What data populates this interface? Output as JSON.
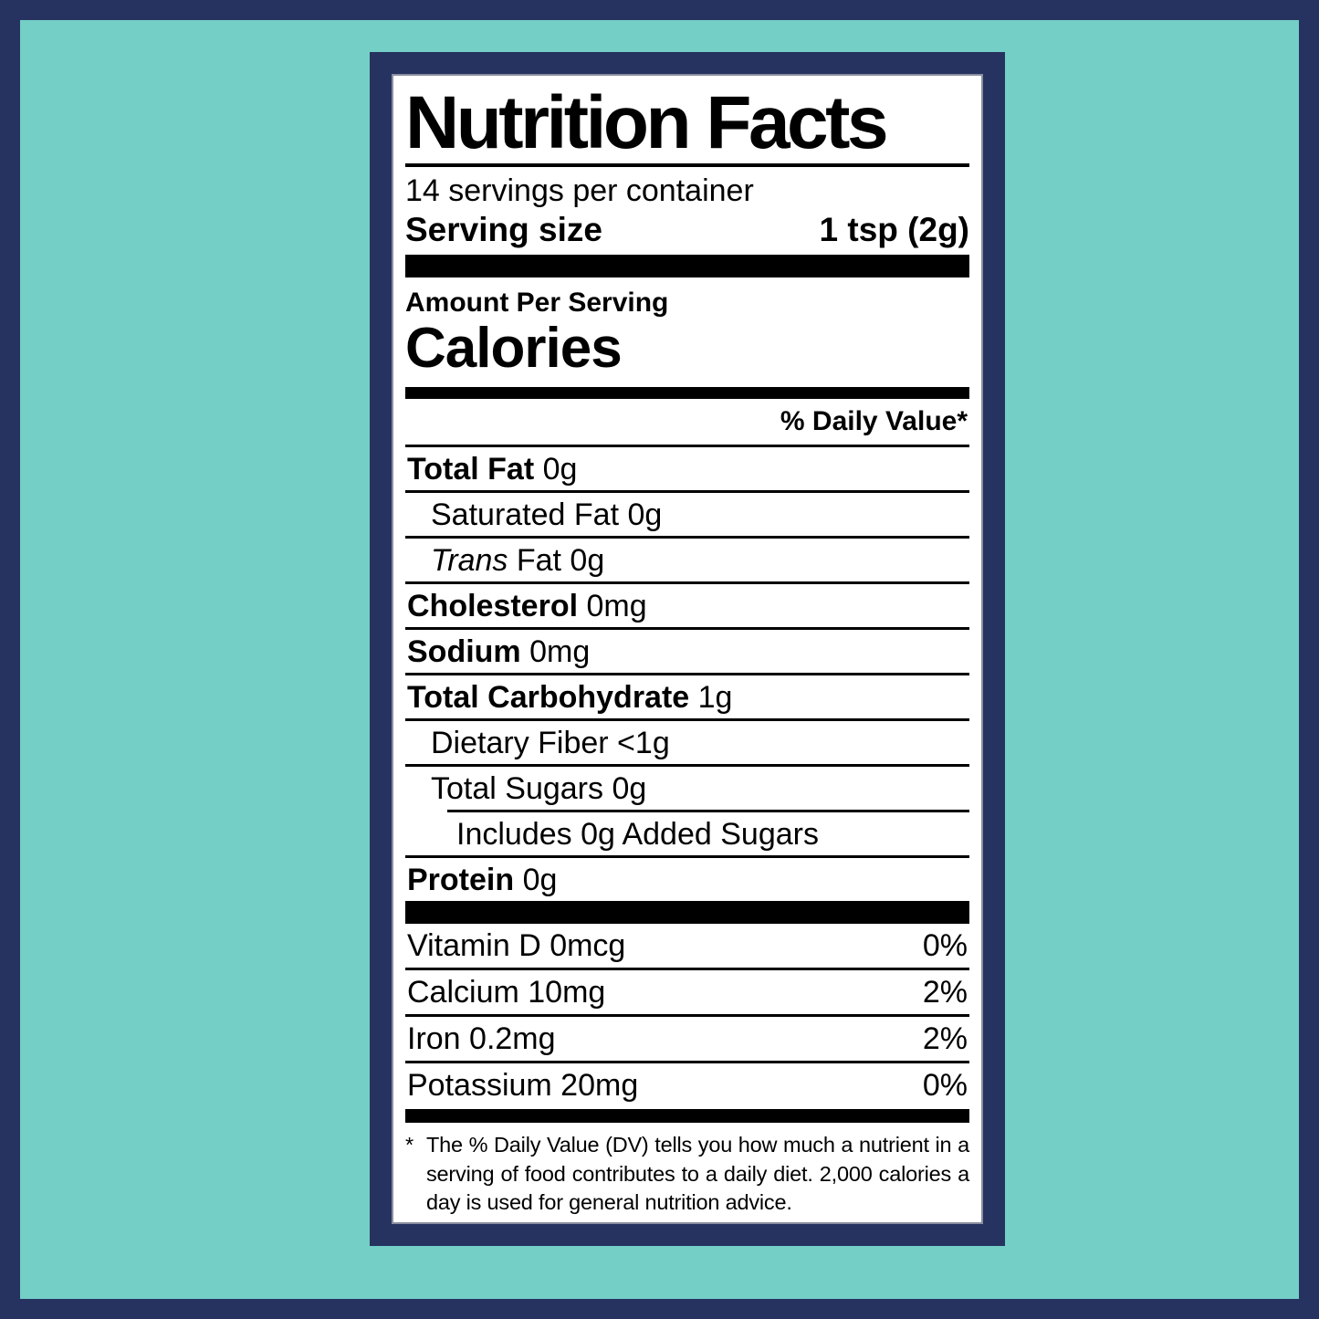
{
  "colors": {
    "outer_border": "#263360",
    "background": "#74cfc6",
    "label_frame": "#263360",
    "label_background": "#ffffff",
    "text": "#000000"
  },
  "label": {
    "title": "Nutrition Facts",
    "servings_per_container": "14 servings per container",
    "serving_size": {
      "label": "Serving size",
      "value": "1 tsp (2g)"
    },
    "amount_per_serving": "Amount Per Serving",
    "calories_label": "Calories",
    "daily_value_header": "% Daily Value*",
    "nutrients": [
      {
        "parts": [
          {
            "text": "Total Fat",
            "style": "bold"
          },
          {
            "text": " 0g",
            "style": "plain"
          }
        ],
        "indent": 0,
        "rule_after": "full"
      },
      {
        "parts": [
          {
            "text": "Saturated Fat 0g",
            "style": "plain"
          }
        ],
        "indent": 1,
        "rule_after": "full"
      },
      {
        "parts": [
          {
            "text": "Trans",
            "style": "italic"
          },
          {
            "text": " Fat 0g",
            "style": "plain"
          }
        ],
        "indent": 1,
        "rule_after": "full"
      },
      {
        "parts": [
          {
            "text": "Cholesterol",
            "style": "bold"
          },
          {
            "text": " 0mg",
            "style": "plain"
          }
        ],
        "indent": 0,
        "rule_after": "full"
      },
      {
        "parts": [
          {
            "text": "Sodium",
            "style": "bold"
          },
          {
            "text": " 0mg",
            "style": "plain"
          }
        ],
        "indent": 0,
        "rule_after": "full"
      },
      {
        "parts": [
          {
            "text": "Total Carbohydrate",
            "style": "bold"
          },
          {
            "text": " 1g",
            "style": "plain"
          }
        ],
        "indent": 0,
        "rule_after": "full"
      },
      {
        "parts": [
          {
            "text": "Dietary Fiber <1g",
            "style": "plain"
          }
        ],
        "indent": 1,
        "rule_after": "full"
      },
      {
        "parts": [
          {
            "text": "Total Sugars 0g",
            "style": "plain"
          }
        ],
        "indent": 1,
        "rule_after": "indent"
      },
      {
        "parts": [
          {
            "text": "Includes 0g Added Sugars",
            "style": "plain"
          }
        ],
        "indent": 2,
        "rule_after": "full"
      },
      {
        "parts": [
          {
            "text": "Protein",
            "style": "bold"
          },
          {
            "text": " 0g",
            "style": "plain"
          }
        ],
        "indent": 0,
        "rule_after": "none"
      }
    ],
    "vitamins": [
      {
        "text": "Vitamin D 0mcg",
        "dv": "0%"
      },
      {
        "text": "Calcium 10mg",
        "dv": "2%"
      },
      {
        "text": "Iron 0.2mg",
        "dv": "2%"
      },
      {
        "text": "Potassium 20mg",
        "dv": "0%"
      }
    ],
    "footnote": {
      "marker": "*",
      "text": "The % Daily Value (DV) tells you how much a nutrient in a serving of food contributes to a daily diet. 2,000 calories a day is used for general nutrition advice."
    }
  }
}
